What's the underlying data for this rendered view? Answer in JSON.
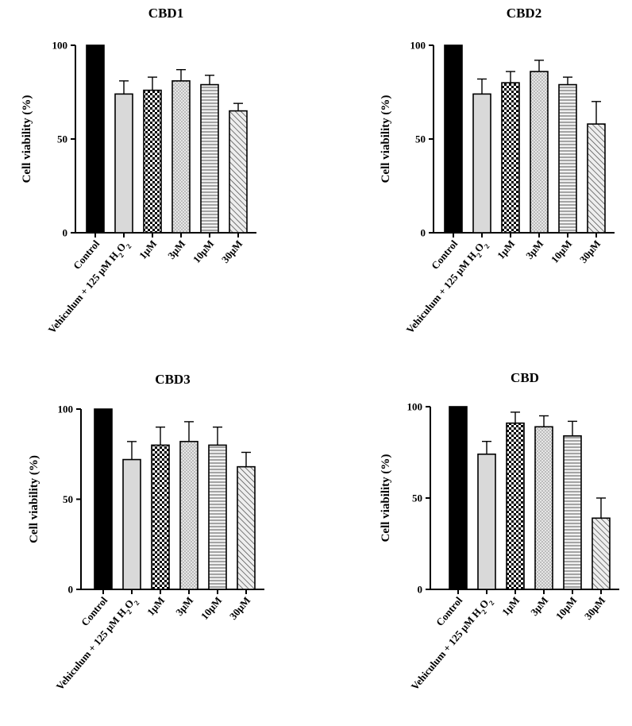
{
  "chart_data": [
    {
      "type": "bar",
      "title": "CBD1",
      "ylabel": "Cell viability (%)",
      "ylim": [
        0,
        100
      ],
      "yticks": [
        "0",
        "50",
        "100"
      ],
      "categories": [
        "Control",
        "Vehiculum + 125 μM H",
        "1μM",
        "3μM",
        "10μM",
        "30μM"
      ],
      "values": [
        100,
        74,
        76,
        81,
        79,
        65
      ],
      "errors": [
        0,
        7,
        7,
        6,
        5,
        4
      ]
    },
    {
      "type": "bar",
      "title": "CBD2",
      "ylabel": "Cell viability (%)",
      "ylim": [
        0,
        100
      ],
      "yticks": [
        "0",
        "50",
        "100"
      ],
      "categories": [
        "Control",
        "Vehiculum + 125 μM H",
        "1μM",
        "3μM",
        "10μM",
        "30μM"
      ],
      "values": [
        100,
        74,
        80,
        86,
        79,
        58
      ],
      "errors": [
        0,
        8,
        6,
        6,
        4,
        12
      ]
    },
    {
      "type": "bar",
      "title": "CBD3",
      "ylabel": "Cell viability (%)",
      "ylim": [
        0,
        100
      ],
      "yticks": [
        "0",
        "50",
        "100"
      ],
      "categories": [
        "Control",
        "Vehiculum + 125 μM H",
        "1μM",
        "3μM",
        "10μM",
        "30μM"
      ],
      "values": [
        100,
        72,
        80,
        82,
        80,
        68
      ],
      "errors": [
        0,
        10,
        10,
        11,
        10,
        8
      ]
    },
    {
      "type": "bar",
      "title": "CBD",
      "ylabel": "Cell viability (%)",
      "ylim": [
        0,
        100
      ],
      "yticks": [
        "0",
        "50",
        "100"
      ],
      "categories": [
        "Control",
        "Vehiculum + 125 μM H",
        "1μM",
        "3μM",
        "10μM",
        "30μM"
      ],
      "values": [
        100,
        74,
        91,
        89,
        84,
        39
      ],
      "errors": [
        0,
        7,
        6,
        6,
        8,
        11
      ]
    }
  ],
  "h2o2": {
    "sub1": "2",
    "tail": "O",
    "sub2": "2"
  },
  "colors": {
    "control": "#000000",
    "vehicle": "#d9d9d9",
    "pattern_fill": "#e6e6e6",
    "stroke": "#000000"
  }
}
